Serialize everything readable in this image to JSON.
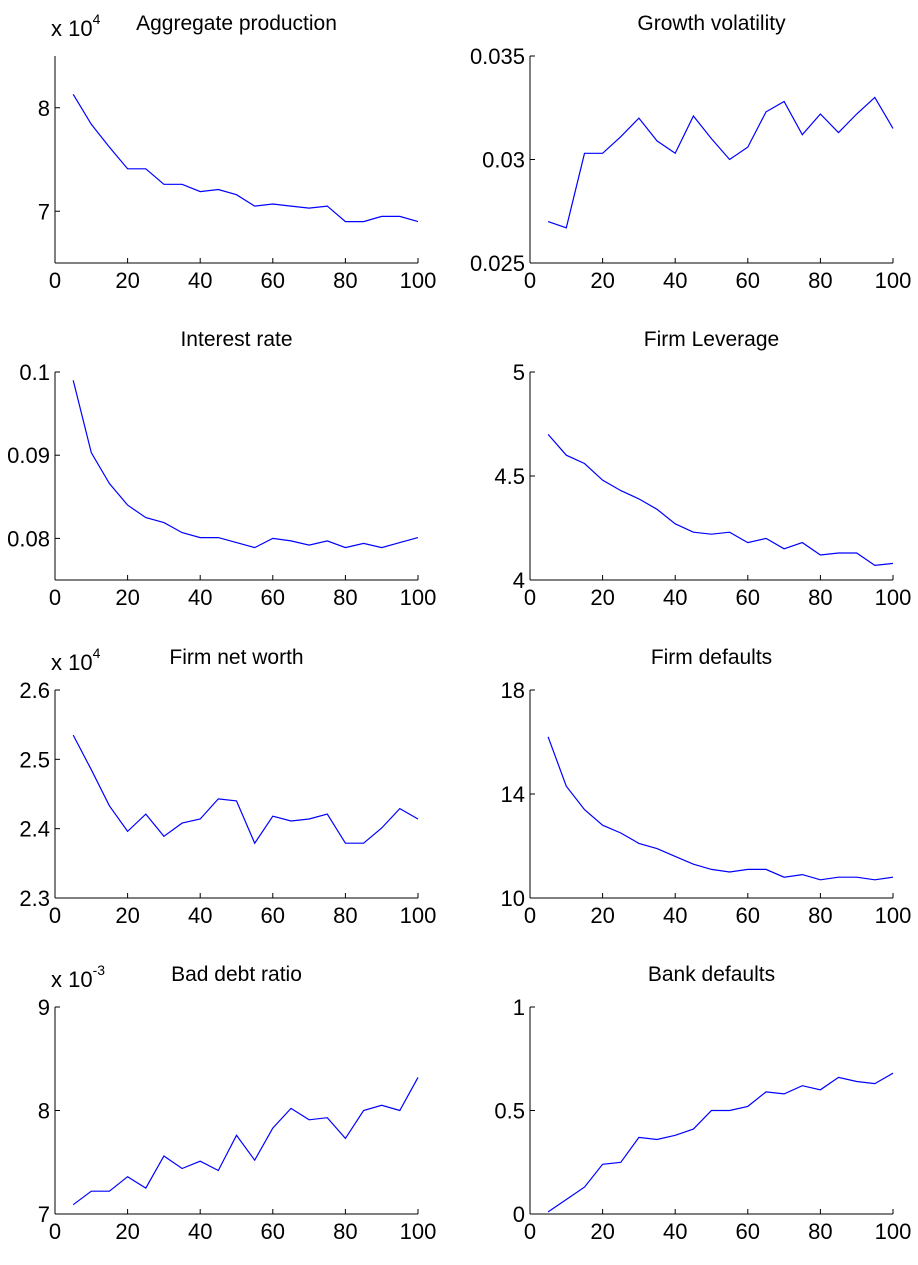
{
  "colors": {
    "line": "#0000ff",
    "axis": "#000000",
    "background": "#ffffff"
  },
  "chart_data": [
    {
      "type": "line",
      "title": "Aggregate production",
      "multiplier": {
        "base": "x 10",
        "exponent": "4"
      },
      "xlim": [
        0,
        100
      ],
      "ylim": [
        6.5,
        8.5
      ],
      "xticks": [
        "0",
        "20",
        "40",
        "60",
        "80",
        "100"
      ],
      "yticks": [
        {
          "value": 7,
          "label": "7"
        },
        {
          "value": 8,
          "label": "8"
        }
      ],
      "x": [
        5,
        10,
        15,
        20,
        25,
        30,
        35,
        40,
        45,
        50,
        55,
        60,
        65,
        70,
        75,
        80,
        85,
        90,
        95,
        100
      ],
      "y": [
        8.13,
        7.84,
        7.62,
        7.41,
        7.41,
        7.26,
        7.26,
        7.19,
        7.21,
        7.16,
        7.05,
        7.07,
        7.05,
        7.03,
        7.05,
        6.9,
        6.9,
        6.95,
        6.95,
        6.9
      ]
    },
    {
      "type": "line",
      "title": "Growth volatility",
      "xlim": [
        0,
        100
      ],
      "ylim": [
        0.025,
        0.035
      ],
      "xticks": [
        "0",
        "20",
        "40",
        "60",
        "80",
        "100"
      ],
      "yticks": [
        {
          "value": 0.025,
          "label": "0.025"
        },
        {
          "value": 0.03,
          "label": "0.03"
        },
        {
          "value": 0.035,
          "label": "0.035"
        }
      ],
      "x": [
        5,
        10,
        15,
        20,
        25,
        30,
        35,
        40,
        45,
        50,
        55,
        60,
        65,
        70,
        75,
        80,
        85,
        90,
        95,
        100
      ],
      "y": [
        0.027,
        0.0267,
        0.0303,
        0.0303,
        0.0311,
        0.032,
        0.0309,
        0.0303,
        0.0321,
        0.031,
        0.03,
        0.0306,
        0.0323,
        0.0328,
        0.0312,
        0.0322,
        0.0313,
        0.0322,
        0.033,
        0.0315
      ]
    },
    {
      "type": "line",
      "title": "Interest rate",
      "xlim": [
        0,
        100
      ],
      "ylim": [
        0.075,
        0.1
      ],
      "xticks": [
        "0",
        "20",
        "40",
        "60",
        "80",
        "100"
      ],
      "yticks": [
        {
          "value": 0.08,
          "label": "0.08"
        },
        {
          "value": 0.09,
          "label": "0.09"
        },
        {
          "value": 0.1,
          "label": "0.1"
        }
      ],
      "x": [
        5,
        10,
        15,
        20,
        25,
        30,
        35,
        40,
        45,
        50,
        55,
        60,
        65,
        70,
        75,
        80,
        85,
        90,
        95,
        100
      ],
      "y": [
        0.099,
        0.0903,
        0.0866,
        0.084,
        0.0825,
        0.0819,
        0.0807,
        0.0801,
        0.0801,
        0.0795,
        0.0789,
        0.08,
        0.0797,
        0.0792,
        0.0797,
        0.0789,
        0.0794,
        0.0789,
        0.0795,
        0.0801
      ]
    },
    {
      "type": "line",
      "title": "Firm Leverage",
      "xlim": [
        0,
        100
      ],
      "ylim": [
        4,
        5
      ],
      "xticks": [
        "0",
        "20",
        "40",
        "60",
        "80",
        "100"
      ],
      "yticks": [
        {
          "value": 4,
          "label": "4"
        },
        {
          "value": 4.5,
          "label": "4.5"
        },
        {
          "value": 5,
          "label": "5"
        }
      ],
      "x": [
        5,
        10,
        15,
        20,
        25,
        30,
        35,
        40,
        45,
        50,
        55,
        60,
        65,
        70,
        75,
        80,
        85,
        90,
        95,
        100
      ],
      "y": [
        4.7,
        4.6,
        4.56,
        4.48,
        4.43,
        4.39,
        4.34,
        4.27,
        4.23,
        4.22,
        4.23,
        4.18,
        4.2,
        4.15,
        4.18,
        4.12,
        4.13,
        4.13,
        4.07,
        4.08
      ]
    },
    {
      "type": "line",
      "title": "Firm net worth",
      "multiplier": {
        "base": "x 10",
        "exponent": "4"
      },
      "xlim": [
        0,
        100
      ],
      "ylim": [
        2.3,
        2.6
      ],
      "xticks": [
        "0",
        "20",
        "40",
        "60",
        "80",
        "100"
      ],
      "yticks": [
        {
          "value": 2.3,
          "label": "2.3"
        },
        {
          "value": 2.4,
          "label": "2.4"
        },
        {
          "value": 2.5,
          "label": "2.5"
        },
        {
          "value": 2.6,
          "label": "2.6"
        }
      ],
      "x": [
        5,
        10,
        15,
        20,
        25,
        30,
        35,
        40,
        45,
        50,
        55,
        60,
        65,
        70,
        75,
        80,
        85,
        90,
        95,
        100
      ],
      "y": [
        2.535,
        2.485,
        2.433,
        2.396,
        2.421,
        2.389,
        2.408,
        2.414,
        2.443,
        2.44,
        2.379,
        2.418,
        2.411,
        2.414,
        2.421,
        2.379,
        2.379,
        2.401,
        2.429,
        2.414
      ]
    },
    {
      "type": "line",
      "title": "Firm defaults",
      "xlim": [
        0,
        100
      ],
      "ylim": [
        10,
        18
      ],
      "xticks": [
        "0",
        "20",
        "40",
        "60",
        "80",
        "100"
      ],
      "yticks": [
        {
          "value": 10,
          "label": "10"
        },
        {
          "value": 14,
          "label": "14"
        },
        {
          "value": 18,
          "label": "18"
        }
      ],
      "x": [
        5,
        10,
        15,
        20,
        25,
        30,
        35,
        40,
        45,
        50,
        55,
        60,
        65,
        70,
        75,
        80,
        85,
        90,
        95,
        100
      ],
      "y": [
        16.2,
        14.3,
        13.4,
        12.8,
        12.5,
        12.1,
        11.9,
        11.6,
        11.3,
        11.1,
        11.0,
        11.1,
        11.1,
        10.8,
        10.9,
        10.7,
        10.8,
        10.8,
        10.7,
        10.8
      ]
    },
    {
      "type": "line",
      "title": "Bad debt ratio",
      "multiplier": {
        "base": "x 10",
        "exponent": "-3"
      },
      "xlim": [
        0,
        100
      ],
      "ylim": [
        7,
        9
      ],
      "xticks": [
        "0",
        "20",
        "40",
        "60",
        "80",
        "100"
      ],
      "yticks": [
        {
          "value": 7,
          "label": "7"
        },
        {
          "value": 8,
          "label": "8"
        },
        {
          "value": 9,
          "label": "9"
        }
      ],
      "x": [
        5,
        10,
        15,
        20,
        25,
        30,
        35,
        40,
        45,
        50,
        55,
        60,
        65,
        70,
        75,
        80,
        85,
        90,
        95,
        100
      ],
      "y": [
        7.09,
        7.22,
        7.22,
        7.36,
        7.25,
        7.56,
        7.44,
        7.51,
        7.42,
        7.76,
        7.52,
        7.83,
        8.02,
        7.91,
        7.93,
        7.73,
        8.0,
        8.05,
        8.0,
        8.32
      ]
    },
    {
      "type": "line",
      "title": "Bank defaults",
      "xlim": [
        0,
        100
      ],
      "ylim": [
        0,
        1
      ],
      "xticks": [
        "0",
        "20",
        "40",
        "60",
        "80",
        "100"
      ],
      "yticks": [
        {
          "value": 0,
          "label": "0"
        },
        {
          "value": 0.5,
          "label": "0.5"
        },
        {
          "value": 1,
          "label": "1"
        }
      ],
      "x": [
        5,
        10,
        15,
        20,
        25,
        30,
        35,
        40,
        45,
        50,
        55,
        60,
        65,
        70,
        75,
        80,
        85,
        90,
        95,
        100
      ],
      "y": [
        0.01,
        0.07,
        0.13,
        0.24,
        0.25,
        0.37,
        0.36,
        0.38,
        0.41,
        0.5,
        0.5,
        0.52,
        0.59,
        0.58,
        0.62,
        0.6,
        0.66,
        0.64,
        0.63,
        0.68
      ]
    }
  ]
}
